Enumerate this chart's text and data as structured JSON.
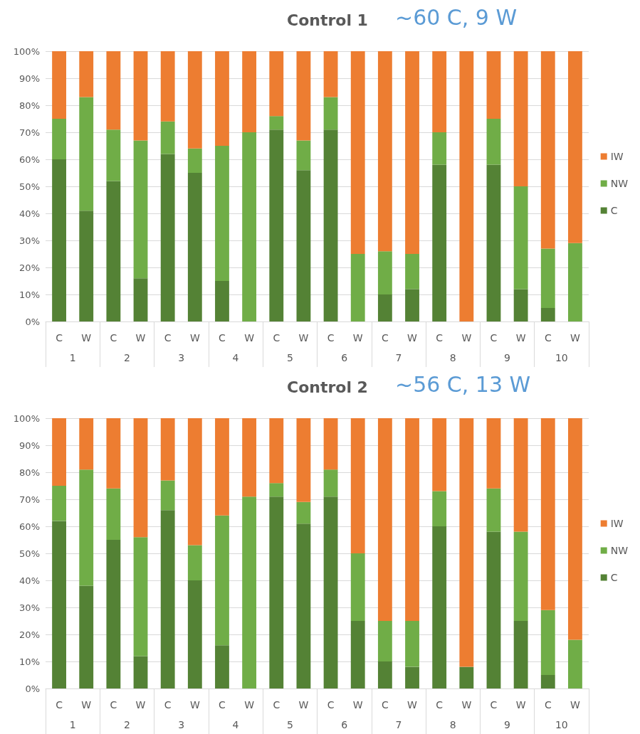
{
  "chart_data": [
    {
      "type": "bar",
      "title": "Control 1",
      "subtitle": "~60 C, 9 W",
      "stacked": true,
      "legend": "right",
      "grid": "y",
      "categories": [
        "C",
        "W",
        "C",
        "W",
        "C",
        "W",
        "C",
        "W",
        "C",
        "W",
        "C",
        "W",
        "C",
        "W",
        "C",
        "W",
        "C",
        "W",
        "C",
        "W"
      ],
      "annotations": [
        "1",
        "2",
        "3",
        "4",
        "5",
        "6",
        "7",
        "8",
        "9",
        "10"
      ],
      "ylim": [
        0,
        100
      ],
      "yticks": [
        {
          "value": 0,
          "label": "0%"
        },
        {
          "value": 10,
          "label": "10%"
        },
        {
          "value": 20,
          "label": "20%"
        },
        {
          "value": 30,
          "label": "30%"
        },
        {
          "value": 40,
          "label": "40%"
        },
        {
          "value": 50,
          "label": "50%"
        },
        {
          "value": 60,
          "label": "60%"
        },
        {
          "value": 70,
          "label": "70%"
        },
        {
          "value": 80,
          "label": "80%"
        },
        {
          "value": 90,
          "label": "90%"
        },
        {
          "value": 100,
          "label": "100%"
        }
      ],
      "series": [
        {
          "name": "C",
          "color": "#548235",
          "values": [
            60,
            41,
            52,
            16,
            62,
            55,
            15,
            0,
            71,
            56,
            71,
            0,
            10,
            12,
            58,
            0,
            58,
            12,
            5,
            0
          ]
        },
        {
          "name": "NW",
          "color": "#70ad47",
          "values": [
            15,
            42,
            19,
            51,
            12,
            9,
            50,
            70,
            5,
            11,
            12,
            25,
            16,
            13,
            12,
            0,
            17,
            38,
            22,
            29
          ]
        },
        {
          "name": "IW",
          "color": "#ed7d31",
          "values": [
            25,
            17,
            29,
            33,
            26,
            36,
            35,
            30,
            24,
            33,
            17,
            75,
            74,
            75,
            30,
            100,
            25,
            50,
            73,
            71
          ]
        }
      ]
    },
    {
      "type": "bar",
      "title": "Control 2",
      "subtitle": "~56 C, 13 W",
      "stacked": true,
      "legend": "right",
      "grid": "y",
      "categories": [
        "C",
        "W",
        "C",
        "W",
        "C",
        "W",
        "C",
        "W",
        "C",
        "W",
        "C",
        "W",
        "C",
        "W",
        "C",
        "W",
        "C",
        "W",
        "C",
        "W"
      ],
      "annotations": [
        "1",
        "2",
        "3",
        "4",
        "5",
        "6",
        "7",
        "8",
        "9",
        "10"
      ],
      "ylim": [
        0,
        100
      ],
      "yticks": [
        {
          "value": 0,
          "label": "0%"
        },
        {
          "value": 10,
          "label": "10%"
        },
        {
          "value": 20,
          "label": "20%"
        },
        {
          "value": 30,
          "label": "30%"
        },
        {
          "value": 40,
          "label": "40%"
        },
        {
          "value": 50,
          "label": "50%"
        },
        {
          "value": 60,
          "label": "60%"
        },
        {
          "value": 70,
          "label": "70%"
        },
        {
          "value": 80,
          "label": "80%"
        },
        {
          "value": 90,
          "label": "90%"
        },
        {
          "value": 100,
          "label": "100%"
        }
      ],
      "series": [
        {
          "name": "C",
          "color": "#548235",
          "values": [
            62,
            38,
            55,
            12,
            66,
            40,
            16,
            0,
            71,
            61,
            71,
            25,
            10,
            8,
            60,
            8,
            58,
            25,
            5,
            0
          ]
        },
        {
          "name": "NW",
          "color": "#70ad47",
          "values": [
            13,
            43,
            19,
            44,
            11,
            13,
            48,
            71,
            5,
            8,
            10,
            25,
            15,
            17,
            13,
            0,
            16,
            33,
            24,
            18
          ]
        },
        {
          "name": "IW",
          "color": "#ed7d31",
          "values": [
            25,
            19,
            26,
            44,
            23,
            47,
            36,
            29,
            24,
            31,
            19,
            50,
            75,
            75,
            27,
            92,
            26,
            42,
            71,
            82
          ]
        }
      ]
    }
  ]
}
